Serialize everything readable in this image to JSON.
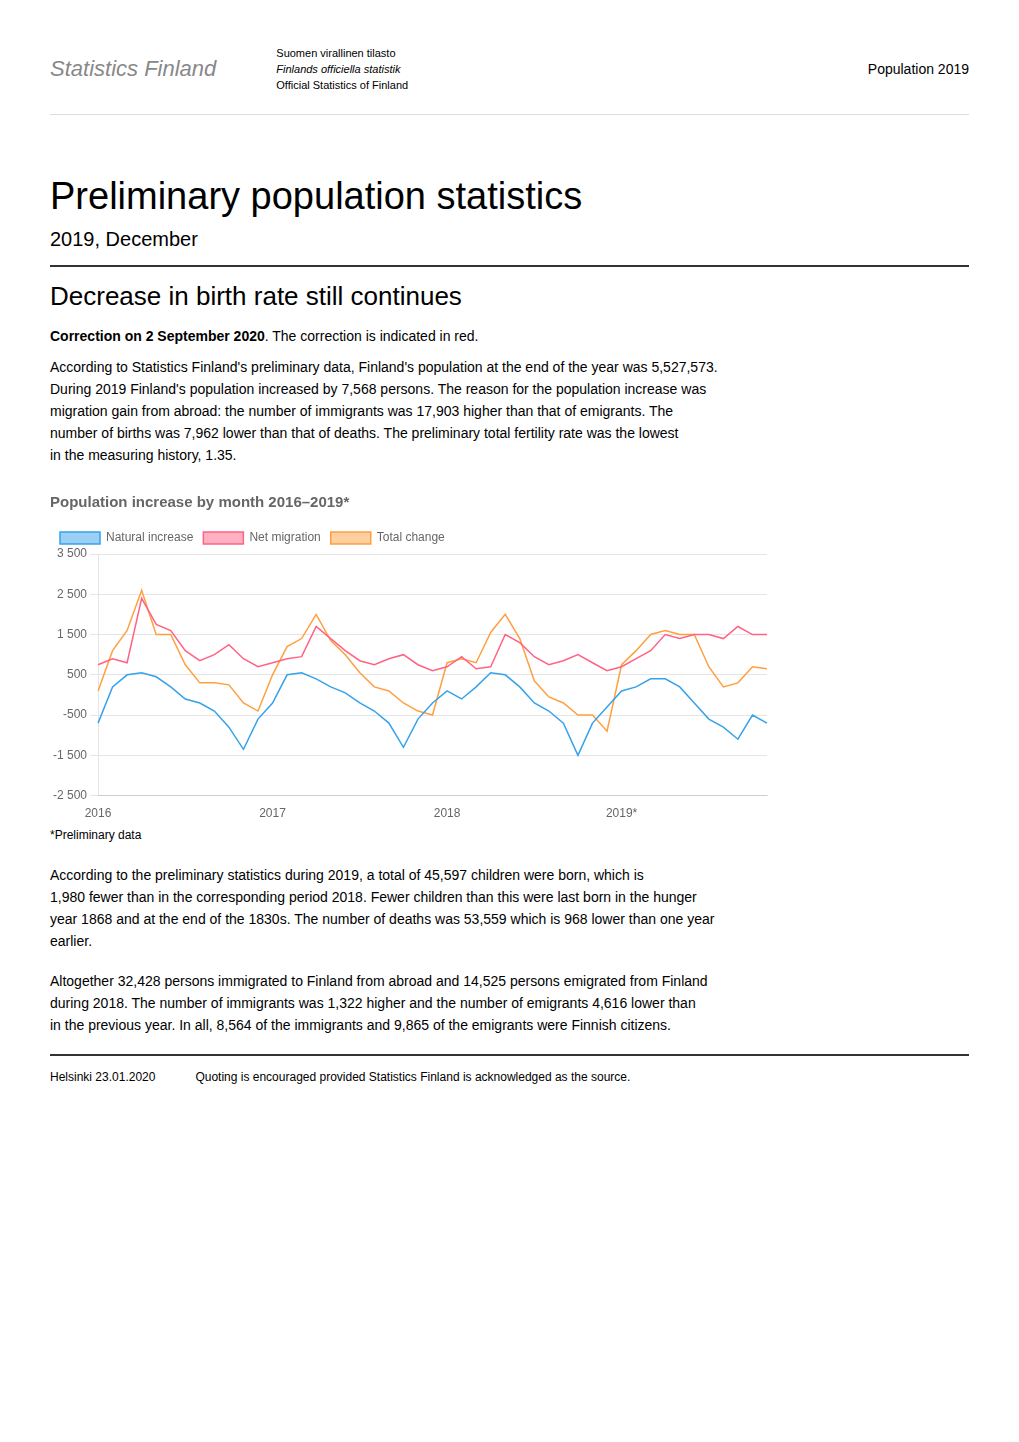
{
  "chart_data": {
    "type": "line",
    "title": "Population increase by month 2016–2019*",
    "categories": [
      "2016",
      null,
      null,
      null,
      null,
      null,
      null,
      null,
      null,
      null,
      null,
      null,
      "2017",
      null,
      null,
      null,
      null,
      null,
      null,
      null,
      null,
      null,
      null,
      null,
      "2018",
      null,
      null,
      null,
      null,
      null,
      null,
      null,
      null,
      null,
      null,
      null,
      "2019*",
      null,
      null,
      null,
      null,
      null,
      null,
      null,
      null,
      null,
      null
    ],
    "series": [
      {
        "name": "Natural increase",
        "values": [
          -700,
          200,
          500,
          550,
          450,
          200,
          -100,
          -200,
          -400,
          -800,
          -1350,
          -600,
          -200,
          500,
          550,
          400,
          200,
          50,
          -200,
          -400,
          -700,
          -1300,
          -600,
          -200,
          100,
          -100,
          200,
          550,
          500,
          200,
          -200,
          -400,
          -700,
          -1500,
          -700,
          -300,
          100,
          200,
          400,
          400,
          200,
          -200,
          -600,
          -800,
          -1100,
          -500,
          -700
        ]
      },
      {
        "name": "Net migration",
        "values": [
          750,
          900,
          800,
          2400,
          1750,
          1600,
          1100,
          850,
          1000,
          1250,
          900,
          700,
          800,
          900,
          950,
          1700,
          1400,
          1100,
          850,
          750,
          900,
          1000,
          750,
          600,
          700,
          950,
          650,
          700,
          1500,
          1300,
          950,
          750,
          850,
          1000,
          800,
          600,
          700,
          900,
          1100,
          1500,
          1400,
          1500,
          1500,
          1400,
          1700,
          1500,
          1500
        ]
      },
      {
        "name": "Total change",
        "values": [
          100,
          1100,
          1600,
          2600,
          1500,
          1500,
          750,
          300,
          300,
          250,
          -200,
          -400,
          500,
          1200,
          1400,
          2000,
          1350,
          1000,
          550,
          200,
          100,
          -200,
          -400,
          -500,
          800,
          900,
          800,
          1550,
          2000,
          1400,
          350,
          -50,
          -200,
          -500,
          -500,
          -900,
          750,
          1100,
          1500,
          1600,
          1500,
          1500,
          700,
          200,
          300,
          700,
          650
        ]
      }
    ],
    "ylim": [
      -2500,
      3500
    ],
    "yticks": [
      {
        "value": -2500,
        "label": "-2 500"
      },
      {
        "value": -1500,
        "label": "-1 500"
      },
      -500,
      500,
      {
        "value": 1500,
        "label": "1 500"
      },
      {
        "value": 2500,
        "label": "2 500"
      },
      {
        "value": 3500,
        "label": "3 500"
      }
    ],
    "grid": "y",
    "legend": "top",
    "annotations": [
      "Statistics Finland",
      "Suomen virallinen tilasto",
      "Finlands officiella statistik",
      "Official Statistics of Finland",
      "Population 2019",
      "Preliminary population statistics",
      "2019, December",
      "Decrease in birth rate still continues",
      "Correction on 2 September 2020",
      ". The correction is indicated in red.",
      "According to Statistics Finland's preliminary data, Finland's population at the end of the year was 5,527,573.",
      "During 2019 Finland's population increased by 7,568 persons. The reason for the population increase was",
      "migration gain from abroad: the number of immigrants was 17,903 higher than that of emigrants. The",
      "number of births was 7,962 lower than that of deaths. The preliminary total fertility rate was the lowest",
      "in the measuring history, 1.35.",
      "*Preliminary data",
      "According to the preliminary statistics during 2019, a total of 45,597 children were born, which is",
      "1,980 fewer than in the corresponding period 2018. Fewer children than this were last born in the hunger",
      "year 1868 and at the end of the 1830s. The number of deaths was 53,559 which is 968 lower than one year",
      "earlier.",
      "Altogether 32,428 persons immigrated to Finland from abroad and 14,525 persons emigrated from Finland",
      "during 2018. The number of immigrants was 1,322 higher and the number of emigrants 4,616 lower than",
      "in the previous year. In all, 8,564 of the immigrants and 9,865 of the emigrants were Finnish citizens.",
      "Helsinki 23.01.2020",
      "Quoting is encouraged provided Statistics Finland is acknowledged as the source."
    ]
  }
}
